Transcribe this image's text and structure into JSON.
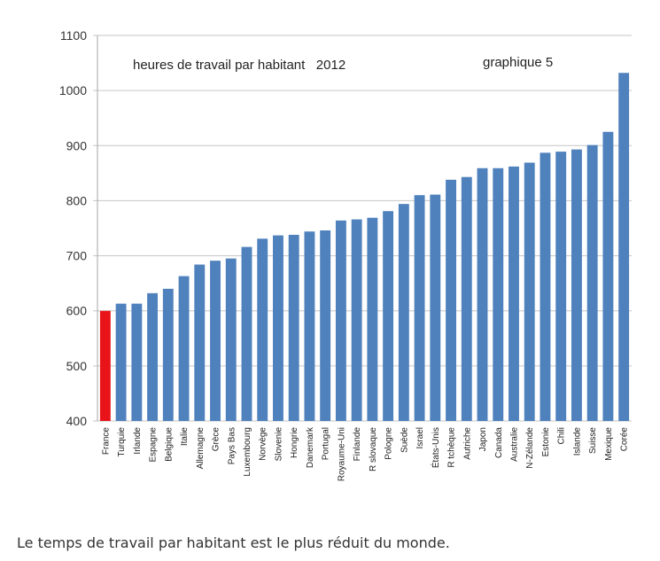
{
  "chart_data": {
    "type": "bar",
    "title": "heures de travail par habitant   2012",
    "subtitle": "graphique 5",
    "xlabel": "",
    "ylabel": "",
    "ylim": [
      400,
      1100
    ],
    "yticks": [
      400,
      500,
      600,
      700,
      800,
      900,
      1000,
      1100
    ],
    "grid": true,
    "categories": [
      "France",
      "Turquie",
      "Irlande",
      "Espagne",
      "Belgique",
      "Italie",
      "Allemagne",
      "Grèce",
      "Pays Bas",
      "Luxembourg",
      "Norvège",
      "Slovenie",
      "Hongrie",
      "Danemark",
      "Portugal",
      "Royaume-Uni",
      "Finlande",
      "R slovaque",
      "Pologne",
      "Suède",
      "Israel",
      "États-Unis",
      "R tchèque",
      "Autriche",
      "Japon",
      "Canada",
      "Australie",
      "N-Zélande",
      "Estonie",
      "Chili",
      "Islande",
      "Suisse",
      "Mexique",
      "Corée"
    ],
    "values": [
      600,
      613,
      613,
      632,
      640,
      663,
      684,
      691,
      695,
      716,
      731,
      737,
      738,
      744,
      746,
      764,
      766,
      769,
      781,
      794,
      810,
      811,
      838,
      843,
      859,
      859,
      862,
      869,
      887,
      889,
      893,
      901,
      925,
      1032
    ],
    "highlight_color": "#e8141a",
    "bar_color": "#4f81bd",
    "highlight_category": "France"
  },
  "caption": "Le temps de travail par habitant est le plus réduit du monde."
}
